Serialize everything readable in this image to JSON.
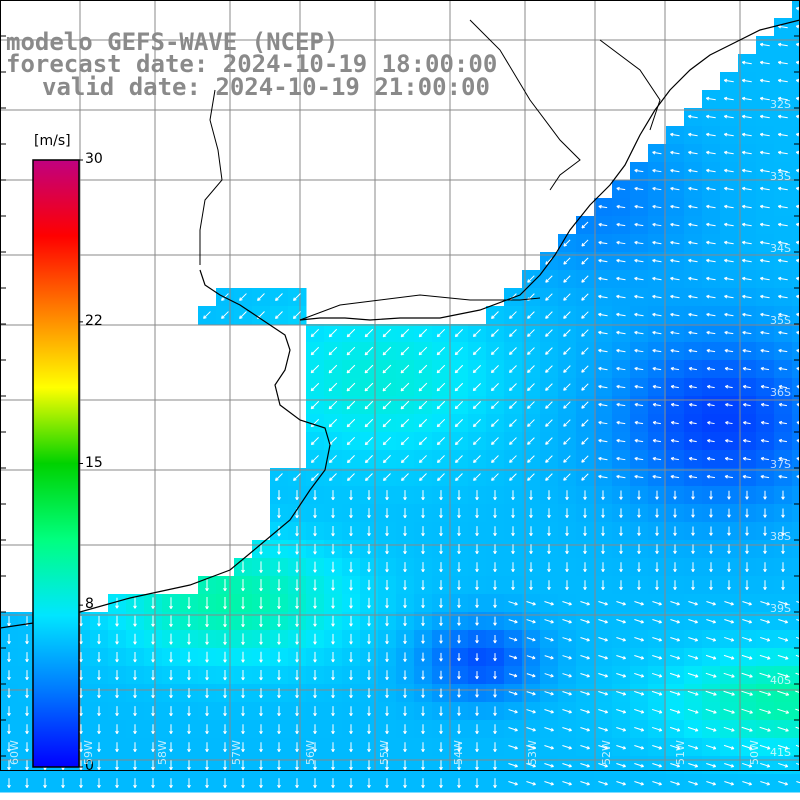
{
  "header": {
    "model_line": "modelo GEFS-WAVE (NCEP)",
    "forecast_line": "forecast date: 2024-10-19 18:00:00",
    "valid_line": "valid date: 2024-10-19 21:00:00"
  },
  "colorbar": {
    "unit": "[m/s]",
    "ticks": [
      "30",
      "22",
      "15",
      "8",
      "0"
    ],
    "tick_values": [
      30,
      22,
      15,
      8,
      0
    ],
    "min": 0,
    "max": 30,
    "colors": [
      "#0000ff",
      "#0078ff",
      "#00e6ff",
      "#00ff7f",
      "#00d200",
      "#ffff00",
      "#ff8000",
      "#ff0000",
      "#c00080"
    ]
  },
  "grid": {
    "lat_labels": [
      "32S",
      "33S",
      "34S",
      "35S",
      "36S",
      "37S",
      "38S",
      "39S",
      "40S",
      "41S"
    ],
    "lon_labels": [
      "60W",
      "59W",
      "58W",
      "57W",
      "56W",
      "55W",
      "54W",
      "53W",
      "52W",
      "51W",
      "50W"
    ]
  },
  "field": {
    "name": "wind speed and direction"
  }
}
